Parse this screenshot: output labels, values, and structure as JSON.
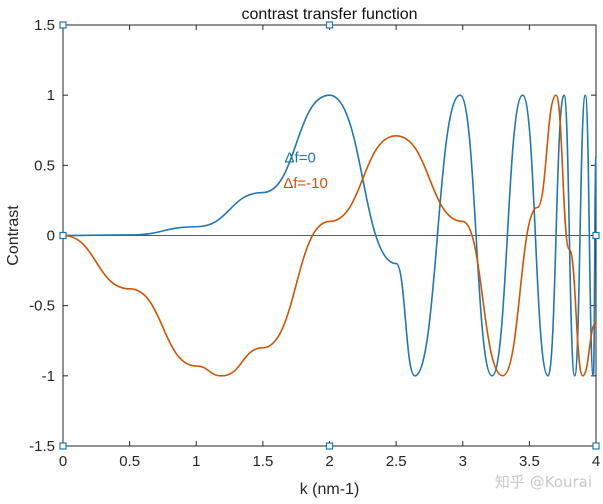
{
  "chart_data": {
    "type": "line",
    "title": "contrast transfer function",
    "xlabel": "k (nm-1)",
    "ylabel": "Contrast",
    "xlim": [
      0,
      4
    ],
    "ylim": [
      -1.5,
      1.5
    ],
    "xticks": [
      "0",
      "0.5",
      "1",
      "1.5",
      "2",
      "2.5",
      "3",
      "3.5",
      "4"
    ],
    "yticks": [
      "-1.5",
      "-1",
      "-0.5",
      "0",
      "0.5",
      "1",
      "1.5"
    ],
    "grid": false,
    "series": [
      {
        "name": "Δf=0",
        "color": "#1f77b4",
        "x": [
          0,
          0.5,
          1.0,
          1.5,
          2.0,
          2.5,
          2.64,
          2.98,
          3.22,
          3.45,
          3.64,
          3.76,
          3.84,
          3.92,
          3.98,
          4.0
        ],
        "y": [
          0,
          0.0039,
          0.0624,
          0.3062,
          1.0,
          -0.2,
          -1.0,
          1.0,
          -1.0,
          1.0,
          -1.0,
          1.0,
          -1.0,
          1.0,
          -1.0,
          0.57
        ]
      },
      {
        "name": "Δf=-10",
        "color": "#d35400",
        "x": [
          0,
          0.5,
          1.0,
          1.19,
          1.5,
          2.0,
          2.5,
          3.0,
          3.3,
          3.56,
          3.7,
          3.8,
          3.9,
          4.0
        ],
        "y": [
          0,
          -0.38,
          -0.93,
          -1.0,
          -0.8,
          0.1,
          0.71,
          0.1,
          -1.0,
          0.2,
          1.0,
          -0.1,
          -1.0,
          -0.62
        ]
      }
    ],
    "annotations": [
      {
        "text": "Δf=0",
        "x": 1.78,
        "y": 0.52,
        "color": "#1f77b4"
      },
      {
        "text": "Δf=-10",
        "x": 1.82,
        "y": 0.34,
        "color": "#d35400"
      }
    ],
    "watermark": "知乎 @Kourai"
  }
}
